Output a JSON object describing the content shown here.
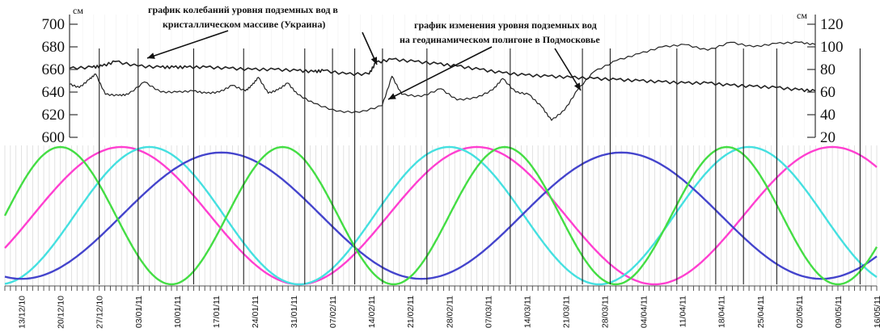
{
  "chart_data": [
    {
      "type": "line",
      "title": "",
      "left_axis": {
        "unit": "см",
        "ticks": [
          "700",
          "680",
          "660",
          "640",
          "620",
          "600"
        ],
        "ylim": [
          600,
          700
        ]
      },
      "right_axis": {
        "unit": "см",
        "ticks": [
          "120",
          "100",
          "80",
          "60",
          "40",
          "20"
        ],
        "ylim": [
          20,
          120
        ]
      },
      "annotations": [
        "график колебаний уровня подземных вод в",
        "кристаллическом массиве (Украина)",
        "график изменения уровня подземных вод",
        "на геодинамическом полигоне в Подмосковье"
      ],
      "series": [
        {
          "name": "график колебаний уровня подземных вод в кристаллическом массиве (Украина)",
          "axis": "left",
          "color": "#222222",
          "x": [
            0,
            14,
            20,
            28,
            42,
            56,
            64,
            72,
            84,
            98,
            112,
            126,
            140,
            150,
            156,
            170,
            184,
            188,
            198,
            212,
            226,
            238,
            252,
            266,
            280,
            294,
            308,
            322,
            336,
            350,
            364,
            378,
            392,
            406,
            420,
            434,
            448,
            458
          ],
          "y": [
            661,
            662,
            663,
            667,
            663,
            662,
            662,
            662,
            662,
            661,
            660,
            660,
            659,
            658,
            659,
            656,
            656,
            666,
            669,
            667,
            665,
            663,
            660,
            657,
            655,
            654,
            653,
            652,
            651,
            650,
            649,
            648,
            648,
            646,
            645,
            644,
            642,
            641
          ]
        },
        {
          "name": "график изменения уровня подземных вод на геодинамическом полигоне в Подмосковье",
          "axis": "right",
          "color": "#222222",
          "x": [
            0,
            6,
            12,
            16,
            22,
            30,
            36,
            46,
            56,
            66,
            76,
            84,
            92,
            100,
            108,
            112,
            116,
            122,
            128,
            134,
            140,
            150,
            164,
            178,
            192,
            198,
            204,
            216,
            228,
            238,
            250,
            260,
            266,
            274,
            282,
            290,
            296,
            304,
            312,
            322,
            336,
            350,
            364,
            378,
            392,
            406,
            420,
            434,
            448,
            458
          ],
          "y": [
            67,
            64,
            71,
            76,
            58,
            57,
            58,
            69,
            60,
            60,
            61,
            59,
            60,
            66,
            61,
            66,
            73,
            59,
            62,
            68,
            58,
            50,
            43,
            42,
            48,
            74,
            58,
            56,
            63,
            53,
            55,
            62,
            72,
            60,
            58,
            47,
            35,
            44,
            62,
            78,
            88,
            94,
            100,
            102,
            97,
            104,
            100,
            103,
            104,
            102
          ]
        },
        {
          "name": "",
          "axis": "none",
          "color": "#ff3fd0",
          "period_days": 64,
          "phase_days": 21,
          "amplitude": 1
        },
        {
          "name": "",
          "axis": "none",
          "color": "#45e0e0",
          "period_days": 54,
          "phase_days": 26,
          "amplitude": 1
        },
        {
          "name": "",
          "axis": "none",
          "color": "#4444cc",
          "period_days": 72,
          "phase_days": 39,
          "amplitude": 0.92
        },
        {
          "name": "",
          "axis": "none",
          "color": "#44dd44",
          "period_days": 40,
          "phase_days": 10,
          "amplitude": 1
        }
      ],
      "x_axis": {
        "type": "date",
        "start": "10/12/10",
        "end": "16/05/11",
        "tick_labels": [
          "13/12/10",
          "20/12/10",
          "27/12/10",
          "03/01/11",
          "10/01/11",
          "17/01/11",
          "24/01/11",
          "31/01/11",
          "07/02/11",
          "14/02/11",
          "21/02/11",
          "28/02/11",
          "07/03/11",
          "14/03/11",
          "21/03/11",
          "28/03/11",
          "04/04/11",
          "11/04/11",
          "18/04/11",
          "25/04/11",
          "02/05/11",
          "09/05/11",
          "16/05/11"
        ]
      },
      "vertical_markers": [
        "27/12/10",
        "03/01/11",
        "13/01/11",
        "22/01/11",
        "02/02/11",
        "07/02/11",
        "11/02/11",
        "16/02/11",
        "24/02/11",
        "11/03/11",
        "24/03/11",
        "29/03/11",
        "10/04/11",
        "17/04/11",
        "22/04/11",
        "28/04/11",
        "13/05/11"
      ],
      "grid": "vertical daily hairlines"
    }
  ]
}
